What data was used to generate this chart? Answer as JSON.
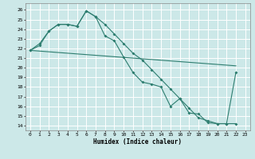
{
  "xlabel": "Humidex (Indice chaleur)",
  "bg_color": "#cce8e8",
  "grid_color": "#bbdddd",
  "line_color": "#2d7d6f",
  "xlim": [
    -0.5,
    23.5
  ],
  "ylim": [
    13.5,
    26.7
  ],
  "yticks": [
    14,
    15,
    16,
    17,
    18,
    19,
    20,
    21,
    22,
    23,
    24,
    25,
    26
  ],
  "xticks": [
    0,
    1,
    2,
    3,
    4,
    5,
    6,
    7,
    8,
    9,
    10,
    11,
    12,
    13,
    14,
    15,
    16,
    17,
    18,
    19,
    20,
    21,
    22,
    23
  ],
  "line1_x": [
    0,
    1,
    2,
    3,
    4,
    5,
    6,
    7,
    8,
    9,
    10,
    11,
    12,
    13,
    14,
    15,
    16,
    17,
    18,
    19,
    20,
    21,
    22
  ],
  "line1_y": [
    21.8,
    22.5,
    23.8,
    24.5,
    24.5,
    24.3,
    25.9,
    25.3,
    23.3,
    22.8,
    21.1,
    19.5,
    18.5,
    18.3,
    18.0,
    16.0,
    16.8,
    15.3,
    15.2,
    14.3,
    14.2,
    14.2,
    19.5
  ],
  "line2_x": [
    0,
    1,
    2,
    3,
    4,
    5,
    6,
    7,
    8,
    9,
    10,
    11,
    12,
    13,
    14,
    15,
    16,
    17,
    18,
    19,
    20,
    21,
    22
  ],
  "line2_y": [
    21.8,
    22.3,
    23.8,
    24.5,
    24.5,
    24.3,
    25.9,
    25.3,
    24.5,
    23.5,
    22.5,
    21.5,
    20.8,
    19.8,
    18.8,
    17.8,
    16.8,
    15.8,
    14.8,
    14.5,
    14.2,
    14.2,
    14.2
  ],
  "line3_x": [
    0,
    22
  ],
  "line3_y": [
    21.8,
    20.2
  ]
}
